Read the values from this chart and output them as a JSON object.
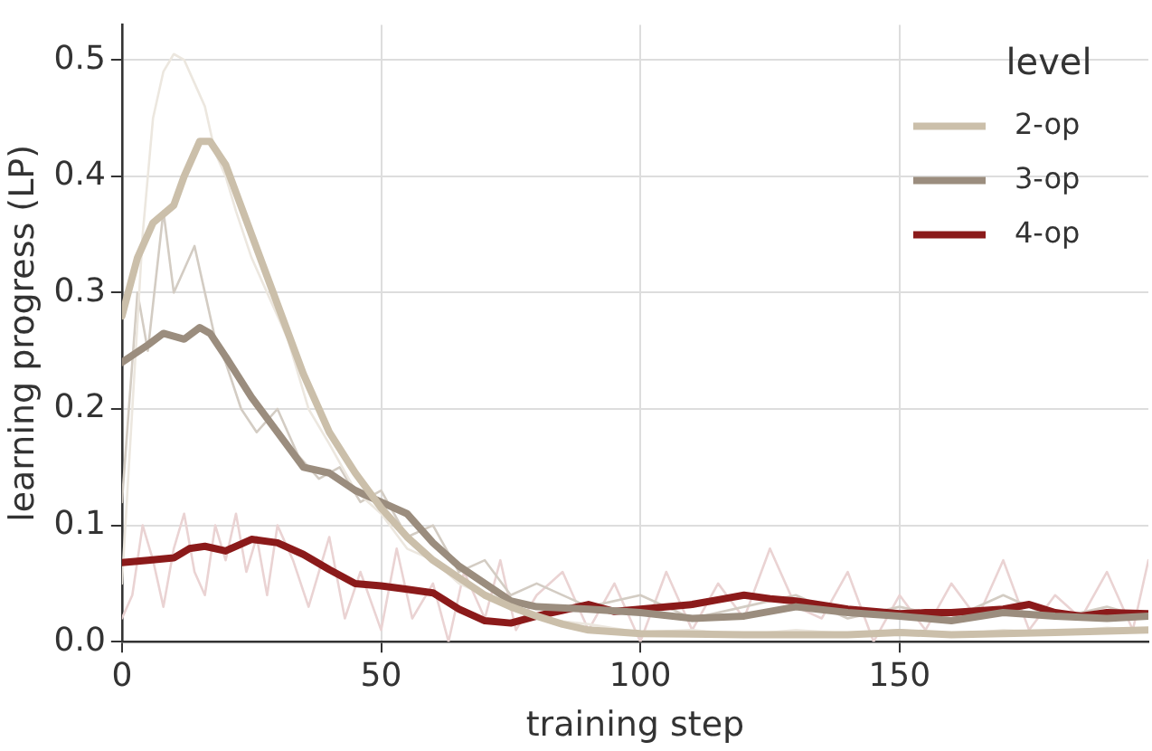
{
  "chart_data": {
    "type": "line",
    "xlabel": "training step",
    "ylabel": "learning progress (LP)",
    "legend_title": "level",
    "legend": "top right",
    "grid": true,
    "marker": "none",
    "line_style": "solid",
    "xlim": [
      0,
      198
    ],
    "xticks": [
      0,
      50,
      100,
      150
    ],
    "ylim": [
      0,
      0.53
    ],
    "yticks": [
      {
        "value": 0,
        "label": "0.0"
      },
      {
        "value": 0.1,
        "label": "0.1"
      },
      {
        "value": 0.2,
        "label": "0.2"
      },
      {
        "value": 0.3,
        "label": "0.3"
      },
      {
        "value": 0.4,
        "label": "0.4"
      },
      {
        "value": 0.5,
        "label": "0.5"
      }
    ],
    "series": [
      {
        "color": "#ece7df",
        "x": [
          0,
          2,
          4,
          6,
          8,
          10,
          12,
          14,
          16,
          18,
          20,
          22,
          25,
          28,
          32,
          36,
          40,
          45,
          50,
          55,
          60,
          65,
          70,
          75,
          80,
          90,
          100,
          110,
          120,
          130,
          140,
          150,
          160,
          170,
          180,
          190,
          198
        ],
        "values": [
          0.05,
          0.2,
          0.35,
          0.45,
          0.49,
          0.505,
          0.5,
          0.48,
          0.46,
          0.42,
          0.4,
          0.37,
          0.33,
          0.3,
          0.26,
          0.2,
          0.17,
          0.13,
          0.11,
          0.08,
          0.07,
          0.05,
          0.04,
          0.03,
          0.02,
          0.015,
          0.008,
          0.01,
          0.006,
          0.01,
          0.007,
          0.01,
          0.006,
          0.01,
          0.008,
          0.012,
          0.01
        ]
      },
      {
        "color": "#d3ccc3",
        "x": [
          0,
          3,
          5,
          8,
          10,
          12,
          14,
          16,
          18,
          20,
          23,
          26,
          30,
          34,
          38,
          42,
          46,
          50,
          55,
          60,
          65,
          70,
          75,
          80,
          90,
          100,
          110,
          120,
          130,
          140,
          150,
          160,
          170,
          180,
          190,
          198
        ],
        "values": [
          0.12,
          0.3,
          0.25,
          0.37,
          0.3,
          0.32,
          0.34,
          0.3,
          0.26,
          0.24,
          0.2,
          0.18,
          0.2,
          0.16,
          0.14,
          0.15,
          0.12,
          0.13,
          0.09,
          0.1,
          0.06,
          0.07,
          0.04,
          0.05,
          0.03,
          0.04,
          0.02,
          0.03,
          0.04,
          0.02,
          0.03,
          0.02,
          0.04,
          0.02,
          0.03,
          0.02
        ]
      },
      {
        "color": "#ead3d3",
        "x": [
          0,
          2,
          4,
          6,
          8,
          10,
          12,
          14,
          16,
          18,
          20,
          22,
          24,
          26,
          28,
          30,
          33,
          36,
          40,
          43,
          46,
          50,
          53,
          56,
          60,
          63,
          66,
          70,
          73,
          76,
          80,
          85,
          90,
          95,
          100,
          105,
          110,
          115,
          120,
          125,
          130,
          135,
          140,
          145,
          150,
          155,
          160,
          165,
          170,
          175,
          180,
          185,
          190,
          195,
          198
        ],
        "values": [
          0.02,
          0.04,
          0.1,
          0.07,
          0.03,
          0.08,
          0.11,
          0.06,
          0.04,
          0.1,
          0.07,
          0.11,
          0.06,
          0.09,
          0.04,
          0.1,
          0.07,
          0.03,
          0.09,
          0.02,
          0.06,
          0.01,
          0.08,
          0.02,
          0.05,
          0.0,
          0.06,
          0.02,
          0.07,
          0.01,
          0.04,
          0.06,
          0.01,
          0.05,
          0.0,
          0.06,
          0.01,
          0.05,
          0.02,
          0.08,
          0.03,
          0.02,
          0.06,
          0.0,
          0.04,
          0.01,
          0.05,
          0.02,
          0.07,
          0.01,
          0.04,
          0.02,
          0.06,
          0.01,
          0.07
        ]
      },
      {
        "name": "2-op",
        "color": "#cbbfaa",
        "x": [
          0,
          3,
          6,
          10,
          12,
          15,
          17,
          20,
          25,
          30,
          35,
          40,
          45,
          50,
          55,
          60,
          65,
          70,
          75,
          80,
          85,
          90,
          100,
          120,
          140,
          150,
          160,
          180,
          198
        ],
        "values": [
          0.28,
          0.33,
          0.36,
          0.375,
          0.4,
          0.43,
          0.43,
          0.41,
          0.35,
          0.29,
          0.23,
          0.18,
          0.145,
          0.115,
          0.09,
          0.07,
          0.055,
          0.04,
          0.03,
          0.022,
          0.015,
          0.01,
          0.007,
          0.006,
          0.006,
          0.008,
          0.006,
          0.008,
          0.01
        ]
      },
      {
        "name": "3-op",
        "color": "#9b8d7e",
        "x": [
          0,
          5,
          8,
          12,
          15,
          17,
          20,
          25,
          30,
          35,
          40,
          45,
          50,
          55,
          60,
          65,
          70,
          75,
          80,
          90,
          100,
          110,
          120,
          130,
          140,
          150,
          160,
          170,
          180,
          190,
          198
        ],
        "values": [
          0.24,
          0.255,
          0.265,
          0.26,
          0.27,
          0.265,
          0.245,
          0.21,
          0.18,
          0.15,
          0.145,
          0.13,
          0.12,
          0.11,
          0.085,
          0.065,
          0.05,
          0.035,
          0.03,
          0.028,
          0.025,
          0.02,
          0.022,
          0.03,
          0.025,
          0.022,
          0.018,
          0.025,
          0.022,
          0.02,
          0.022
        ]
      },
      {
        "name": "4-op",
        "color": "#8b1a1a",
        "x": [
          0,
          5,
          10,
          13,
          16,
          20,
          25,
          30,
          35,
          40,
          45,
          50,
          55,
          60,
          65,
          70,
          75,
          80,
          85,
          90,
          95,
          100,
          110,
          115,
          120,
          125,
          130,
          140,
          150,
          155,
          160,
          170,
          175,
          180,
          185,
          190,
          198
        ],
        "values": [
          0.068,
          0.07,
          0.072,
          0.08,
          0.082,
          0.078,
          0.088,
          0.085,
          0.075,
          0.062,
          0.05,
          0.048,
          0.045,
          0.042,
          0.028,
          0.018,
          0.016,
          0.022,
          0.027,
          0.032,
          0.026,
          0.028,
          0.032,
          0.036,
          0.04,
          0.037,
          0.035,
          0.028,
          0.024,
          0.025,
          0.025,
          0.028,
          0.032,
          0.025,
          0.022,
          0.025,
          0.024
        ]
      }
    ]
  }
}
